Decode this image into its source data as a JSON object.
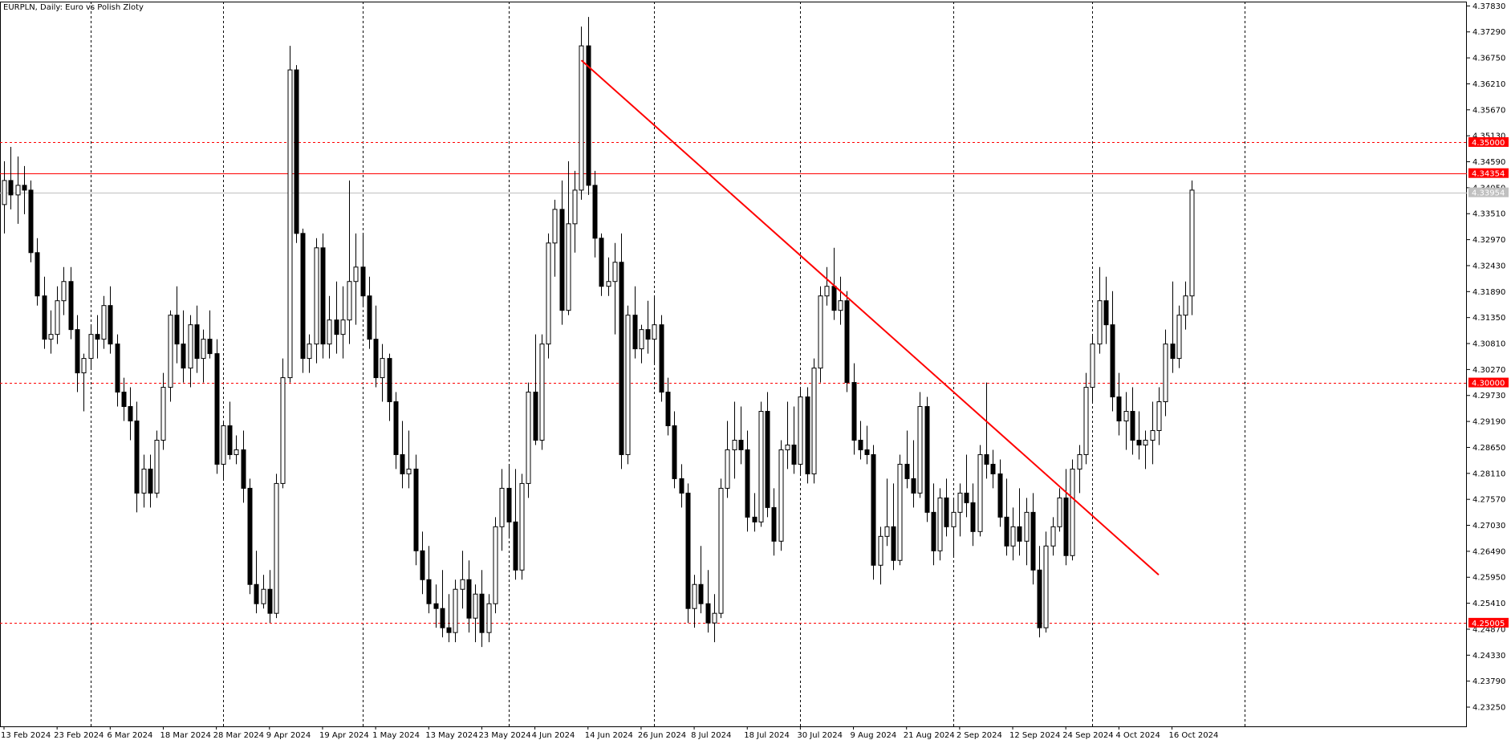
{
  "chart_data": {
    "type": "candlestick",
    "title": "EURPLN, Daily:  Euro vs Polish Zloty",
    "ylim": [
      4.2285,
      4.3792
    ],
    "y_ticks": [
      "4.37830",
      "4.37290",
      "4.36750",
      "4.36210",
      "4.35670",
      "4.35130",
      "4.34590",
      "4.34050",
      "4.33510",
      "4.32970",
      "4.32430",
      "4.31890",
      "4.31350",
      "4.30810",
      "4.30270",
      "4.29730",
      "4.29190",
      "4.28650",
      "4.28110",
      "4.27570",
      "4.27030",
      "4.26490",
      "4.25950",
      "4.25410",
      "4.24870",
      "4.24330",
      "4.23790",
      "4.23250"
    ],
    "x_labels": [
      {
        "label": "13 Feb 2024",
        "index": 0
      },
      {
        "label": "23 Feb 2024",
        "index": 8
      },
      {
        "label": "6 Mar 2024",
        "index": 16
      },
      {
        "label": "18 Mar 2024",
        "index": 24
      },
      {
        "label": "28 Mar 2024",
        "index": 32
      },
      {
        "label": "9 Apr 2024",
        "index": 40
      },
      {
        "label": "19 Apr 2024",
        "index": 48
      },
      {
        "label": "1 May 2024",
        "index": 56
      },
      {
        "label": "13 May 2024",
        "index": 64
      },
      {
        "label": "23 May 2024",
        "index": 72
      },
      {
        "label": "4 Jun 2024",
        "index": 80
      },
      {
        "label": "14 Jun 2024",
        "index": 88
      },
      {
        "label": "26 Jun 2024",
        "index": 96
      },
      {
        "label": "8 Jul 2024",
        "index": 104
      },
      {
        "label": "18 Jul 2024",
        "index": 112
      },
      {
        "label": "30 Jul 2024",
        "index": 120
      },
      {
        "label": "9 Aug 2024",
        "index": 128
      },
      {
        "label": "21 Aug 2024",
        "index": 136
      },
      {
        "label": "2 Sep 2024",
        "index": 144
      },
      {
        "label": "12 Sep 2024",
        "index": 152
      },
      {
        "label": "24 Sep 2024",
        "index": 160
      },
      {
        "label": "4 Oct 2024",
        "index": 168
      },
      {
        "label": "16 Oct 2024",
        "index": 176
      }
    ],
    "period_separators": [
      13,
      33,
      54,
      76,
      98,
      120,
      143,
      164,
      187
    ],
    "candles": [
      [
        4.337,
        4.346,
        4.331,
        4.342
      ],
      [
        4.342,
        4.349,
        4.336,
        4.339
      ],
      [
        4.339,
        4.347,
        4.333,
        4.341
      ],
      [
        4.341,
        4.345,
        4.335,
        4.34
      ],
      [
        4.34,
        4.342,
        4.325,
        4.327
      ],
      [
        4.327,
        4.33,
        4.316,
        4.318
      ],
      [
        4.318,
        4.322,
        4.307,
        4.309
      ],
      [
        4.309,
        4.315,
        4.306,
        4.31
      ],
      [
        4.31,
        4.32,
        4.308,
        4.317
      ],
      [
        4.317,
        4.324,
        4.314,
        4.321
      ],
      [
        4.321,
        4.324,
        4.309,
        4.311
      ],
      [
        4.311,
        4.314,
        4.298,
        4.302
      ],
      [
        4.302,
        4.306,
        4.294,
        4.305
      ],
      [
        4.305,
        4.312,
        4.303,
        4.31
      ],
      [
        4.31,
        4.314,
        4.305,
        4.309
      ],
      [
        4.309,
        4.318,
        4.307,
        4.316
      ],
      [
        4.316,
        4.32,
        4.306,
        4.308
      ],
      [
        4.308,
        4.31,
        4.295,
        4.298
      ],
      [
        4.298,
        4.301,
        4.292,
        4.295
      ],
      [
        4.295,
        4.299,
        4.288,
        4.292
      ],
      [
        4.292,
        4.296,
        4.273,
        4.277
      ],
      [
        4.277,
        4.285,
        4.274,
        4.282
      ],
      [
        4.282,
        4.285,
        4.274,
        4.277
      ],
      [
        4.277,
        4.29,
        4.276,
        4.288
      ],
      [
        4.288,
        4.302,
        4.286,
        4.299
      ],
      [
        4.299,
        4.315,
        4.296,
        4.314
      ],
      [
        4.314,
        4.32,
        4.304,
        4.308
      ],
      [
        4.308,
        4.315,
        4.3,
        4.303
      ],
      [
        4.303,
        4.314,
        4.299,
        4.312
      ],
      [
        4.312,
        4.316,
        4.302,
        4.305
      ],
      [
        4.305,
        4.311,
        4.3,
        4.309
      ],
      [
        4.309,
        4.315,
        4.305,
        4.306
      ],
      [
        4.306,
        4.309,
        4.281,
        4.283
      ],
      [
        4.283,
        4.292,
        4.28,
        4.291
      ],
      [
        4.291,
        4.296,
        4.284,
        4.285
      ],
      [
        4.285,
        4.289,
        4.283,
        4.286
      ],
      [
        4.286,
        4.29,
        4.275,
        4.278
      ],
      [
        4.278,
        4.28,
        4.256,
        4.258
      ],
      [
        4.258,
        4.265,
        4.252,
        4.254
      ],
      [
        4.254,
        4.26,
        4.253,
        4.257
      ],
      [
        4.257,
        4.261,
        4.25,
        4.252
      ],
      [
        4.252,
        4.281,
        4.251,
        4.279
      ],
      [
        4.279,
        4.305,
        4.278,
        4.301
      ],
      [
        4.301,
        4.37,
        4.3,
        4.365
      ],
      [
        4.365,
        4.366,
        4.329,
        4.331
      ],
      [
        4.331,
        4.332,
        4.302,
        4.305
      ],
      [
        4.305,
        4.31,
        4.302,
        4.308
      ],
      [
        4.308,
        4.33,
        4.304,
        4.328
      ],
      [
        4.328,
        4.331,
        4.305,
        4.308
      ],
      [
        4.308,
        4.318,
        4.305,
        4.313
      ],
      [
        4.313,
        4.321,
        4.306,
        4.31
      ],
      [
        4.31,
        4.32,
        4.305,
        4.313
      ],
      [
        4.313,
        4.342,
        4.308,
        4.321
      ],
      [
        4.321,
        4.331,
        4.312,
        4.324
      ],
      [
        4.324,
        4.331,
        4.316,
        4.318
      ],
      [
        4.318,
        4.322,
        4.307,
        4.309
      ],
      [
        4.309,
        4.316,
        4.299,
        4.301
      ],
      [
        4.301,
        4.308,
        4.296,
        4.305
      ],
      [
        4.305,
        4.306,
        4.292,
        4.296
      ],
      [
        4.296,
        4.298,
        4.282,
        4.285
      ],
      [
        4.285,
        4.292,
        4.278,
        4.281
      ],
      [
        4.281,
        4.29,
        4.278,
        4.282
      ],
      [
        4.282,
        4.285,
        4.262,
        4.265
      ],
      [
        4.265,
        4.269,
        4.256,
        4.259
      ],
      [
        4.259,
        4.266,
        4.252,
        4.254
      ],
      [
        4.254,
        4.258,
        4.249,
        4.253
      ],
      [
        4.253,
        4.261,
        4.247,
        4.249
      ],
      [
        4.249,
        4.256,
        4.246,
        4.248
      ],
      [
        4.248,
        4.259,
        4.246,
        4.257
      ],
      [
        4.257,
        4.265,
        4.253,
        4.259
      ],
      [
        4.259,
        4.263,
        4.248,
        4.251
      ],
      [
        4.251,
        4.258,
        4.246,
        4.256
      ],
      [
        4.256,
        4.261,
        4.245,
        4.248
      ],
      [
        4.248,
        4.256,
        4.246,
        4.254
      ],
      [
        4.254,
        4.272,
        4.252,
        4.27
      ],
      [
        4.27,
        4.282,
        4.265,
        4.278
      ],
      [
        4.278,
        4.283,
        4.268,
        4.271
      ],
      [
        4.271,
        4.282,
        4.259,
        4.261
      ],
      [
        4.261,
        4.281,
        4.259,
        4.279
      ],
      [
        4.279,
        4.3,
        4.276,
        4.298
      ],
      [
        4.298,
        4.31,
        4.287,
        4.288
      ],
      [
        4.288,
        4.31,
        4.286,
        4.308
      ],
      [
        4.308,
        4.331,
        4.305,
        4.329
      ],
      [
        4.329,
        4.338,
        4.322,
        4.336
      ],
      [
        4.336,
        4.342,
        4.312,
        4.315
      ],
      [
        4.315,
        4.346,
        4.314,
        4.333
      ],
      [
        4.333,
        4.344,
        4.327,
        4.34
      ],
      [
        4.34,
        4.374,
        4.338,
        4.37
      ],
      [
        4.37,
        4.376,
        4.339,
        4.341
      ],
      [
        4.341,
        4.344,
        4.326,
        4.33
      ],
      [
        4.33,
        4.331,
        4.318,
        4.32
      ],
      [
        4.32,
        4.326,
        4.318,
        4.321
      ],
      [
        4.321,
        4.329,
        4.31,
        4.325
      ],
      [
        4.325,
        4.331,
        4.282,
        4.285
      ],
      [
        4.285,
        4.316,
        4.283,
        4.314
      ],
      [
        4.314,
        4.32,
        4.305,
        4.307
      ],
      [
        4.307,
        4.312,
        4.304,
        4.311
      ],
      [
        4.311,
        4.317,
        4.306,
        4.309
      ],
      [
        4.309,
        4.318,
        4.304,
        4.312
      ],
      [
        4.312,
        4.314,
        4.296,
        4.298
      ],
      [
        4.298,
        4.301,
        4.289,
        4.291
      ],
      [
        4.291,
        4.294,
        4.278,
        4.28
      ],
      [
        4.28,
        4.283,
        4.274,
        4.277
      ],
      [
        4.277,
        4.279,
        4.25,
        4.253
      ],
      [
        4.253,
        4.26,
        4.249,
        4.258
      ],
      [
        4.258,
        4.266,
        4.252,
        4.254
      ],
      [
        4.254,
        4.261,
        4.248,
        4.25
      ],
      [
        4.25,
        4.256,
        4.246,
        4.252
      ],
      [
        4.252,
        4.28,
        4.251,
        4.278
      ],
      [
        4.278,
        4.292,
        4.276,
        4.286
      ],
      [
        4.286,
        4.296,
        4.28,
        4.288
      ],
      [
        4.288,
        4.295,
        4.283,
        4.286
      ],
      [
        4.286,
        4.29,
        4.269,
        4.272
      ],
      [
        4.272,
        4.277,
        4.269,
        4.271
      ],
      [
        4.271,
        4.296,
        4.27,
        4.294
      ],
      [
        4.294,
        4.298,
        4.272,
        4.274
      ],
      [
        4.274,
        4.278,
        4.264,
        4.267
      ],
      [
        4.267,
        4.288,
        4.265,
        4.286
      ],
      [
        4.286,
        4.296,
        4.282,
        4.287
      ],
      [
        4.287,
        4.295,
        4.281,
        4.283
      ],
      [
        4.283,
        4.299,
        4.281,
        4.297
      ],
      [
        4.297,
        4.299,
        4.279,
        4.281
      ],
      [
        4.281,
        4.305,
        4.279,
        4.303
      ],
      [
        4.303,
        4.32,
        4.3,
        4.318
      ],
      [
        4.318,
        4.324,
        4.316,
        4.32
      ],
      [
        4.32,
        4.328,
        4.313,
        4.315
      ],
      [
        4.315,
        4.322,
        4.312,
        4.317
      ],
      [
        4.317,
        4.319,
        4.298,
        4.3
      ],
      [
        4.3,
        4.304,
        4.285,
        4.288
      ],
      [
        4.288,
        4.292,
        4.284,
        4.286
      ],
      [
        4.286,
        4.291,
        4.283,
        4.285
      ],
      [
        4.285,
        4.287,
        4.259,
        4.262
      ],
      [
        4.262,
        4.27,
        4.258,
        4.268
      ],
      [
        4.268,
        4.28,
        4.266,
        4.27
      ],
      [
        4.27,
        4.279,
        4.261,
        4.263
      ],
      [
        4.263,
        4.285,
        4.262,
        4.283
      ],
      [
        4.283,
        4.29,
        4.278,
        4.28
      ],
      [
        4.28,
        4.288,
        4.274,
        4.277
      ],
      [
        4.277,
        4.298,
        4.276,
        4.295
      ],
      [
        4.295,
        4.297,
        4.271,
        4.273
      ],
      [
        4.273,
        4.279,
        4.262,
        4.265
      ],
      [
        4.265,
        4.278,
        4.263,
        4.276
      ],
      [
        4.276,
        4.28,
        4.268,
        4.27
      ],
      [
        4.27,
        4.276,
        4.264,
        4.273
      ],
      [
        4.273,
        4.279,
        4.268,
        4.277
      ],
      [
        4.277,
        4.285,
        4.272,
        4.275
      ],
      [
        4.275,
        4.279,
        4.266,
        4.269
      ],
      [
        4.269,
        4.287,
        4.268,
        4.285
      ],
      [
        4.285,
        4.3,
        4.28,
        4.283
      ],
      [
        4.283,
        4.286,
        4.278,
        4.281
      ],
      [
        4.281,
        4.284,
        4.27,
        4.272
      ],
      [
        4.272,
        4.28,
        4.264,
        4.266
      ],
      [
        4.266,
        4.274,
        4.263,
        4.27
      ],
      [
        4.27,
        4.278,
        4.264,
        4.267
      ],
      [
        4.267,
        4.276,
        4.262,
        4.273
      ],
      [
        4.273,
        4.277,
        4.258,
        4.261
      ],
      [
        4.261,
        4.266,
        4.247,
        4.249
      ],
      [
        4.249,
        4.269,
        4.248,
        4.266
      ],
      [
        4.266,
        4.272,
        4.264,
        4.27
      ],
      [
        4.27,
        4.278,
        4.269,
        4.276
      ],
      [
        4.276,
        4.282,
        4.262,
        4.264
      ],
      [
        4.264,
        4.284,
        4.263,
        4.282
      ],
      [
        4.282,
        4.287,
        4.277,
        4.285
      ],
      [
        4.285,
        4.302,
        4.283,
        4.299
      ],
      [
        4.299,
        4.31,
        4.296,
        4.308
      ],
      [
        4.308,
        4.324,
        4.306,
        4.317
      ],
      [
        4.317,
        4.322,
        4.308,
        4.312
      ],
      [
        4.312,
        4.319,
        4.294,
        4.297
      ],
      [
        4.297,
        4.302,
        4.289,
        4.292
      ],
      [
        4.292,
        4.298,
        4.286,
        4.294
      ],
      [
        4.294,
        4.299,
        4.285,
        4.288
      ],
      [
        4.288,
        4.294,
        4.284,
        4.287
      ],
      [
        4.287,
        4.29,
        4.282,
        4.288
      ],
      [
        4.288,
        4.296,
        4.283,
        4.29
      ],
      [
        4.29,
        4.299,
        4.287,
        4.296
      ],
      [
        4.296,
        4.311,
        4.293,
        4.308
      ],
      [
        4.308,
        4.321,
        4.302,
        4.305
      ],
      [
        4.305,
        4.316,
        4.303,
        4.314
      ],
      [
        4.314,
        4.321,
        4.311,
        4.318
      ],
      [
        4.318,
        4.342,
        4.314,
        4.34
      ]
    ],
    "horizontal_lines": [
      {
        "price": 4.35,
        "label": "4.35000",
        "style": "dashed",
        "color": "#ff0000"
      },
      {
        "price": 4.34354,
        "label": "4.34354",
        "style": "solid",
        "color": "#ff0000"
      },
      {
        "price": 4.3,
        "label": "4.30000",
        "style": "dashed",
        "color": "#ff0000"
      },
      {
        "price": 4.25005,
        "label": "4.25005",
        "style": "dashed",
        "color": "#ff0000"
      }
    ],
    "current_price": {
      "price": 4.33954,
      "label": "4.33954",
      "color": "#c0c0c0"
    },
    "trendline": {
      "x1": 87,
      "y1": 4.367,
      "x2": 174,
      "y2": 4.26,
      "color": "#ff0000"
    },
    "colors": {
      "bull_body": "#ffffff",
      "bear_body": "#000000",
      "outline": "#000000",
      "grid": "#000000",
      "background": "#ffffff"
    }
  }
}
